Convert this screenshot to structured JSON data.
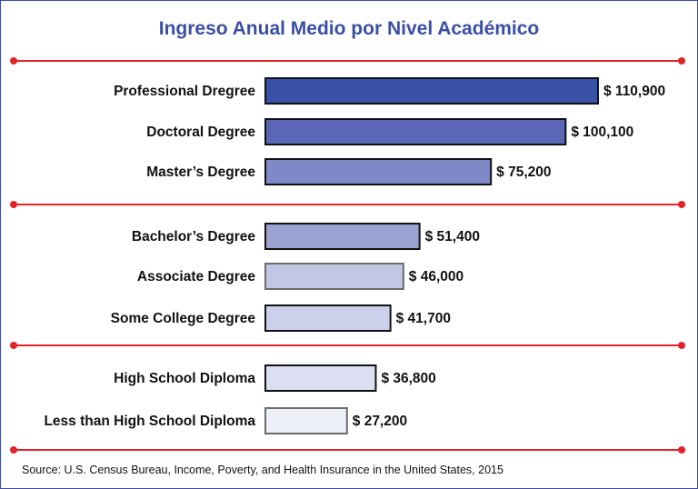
{
  "chart_data": {
    "type": "bar",
    "orientation": "horizontal",
    "title": "Ingreso Anual Medio por Nivel Académico",
    "source": "Source: U.S. Census Bureau, Income, Poverty, and Health Insurance in the United States, 2015",
    "categories": [
      "Professional Dregree",
      "Doctoral Degree",
      "Master’s Degree",
      "Bachelor’s Degree",
      "Associate Degree",
      "Some College Degree",
      "High School Diploma",
      "Less than High School Diploma"
    ],
    "values": [
      110900,
      100100,
      75200,
      51400,
      46000,
      41700,
      36800,
      27200
    ],
    "value_labels": [
      "$ 110,900",
      "$ 100,100",
      "$ 75,200",
      "$ 51,400",
      "$ 46,000",
      "$ 41,700",
      "$ 36,800",
      "$ 27,200"
    ],
    "bar_colors": [
      "#3a51a8",
      "#5967b6",
      "#7f89c7",
      "#9ba2d2",
      "#c3c7e6",
      "#ccd0ea",
      "#dcdff1",
      "#eef0f7"
    ],
    "bar_outline_colors": [
      "#111111",
      "#111111",
      "#111111",
      "#111111",
      "#6b6b6b",
      "#111111",
      "#111111",
      "#6b6b6b"
    ],
    "groups": [
      [
        0,
        1,
        2
      ],
      [
        3,
        4,
        5
      ],
      [
        6,
        7
      ]
    ],
    "separator_color": "#e2232a",
    "title_color": "#3a4fa5",
    "grid": false,
    "legend": "none"
  }
}
